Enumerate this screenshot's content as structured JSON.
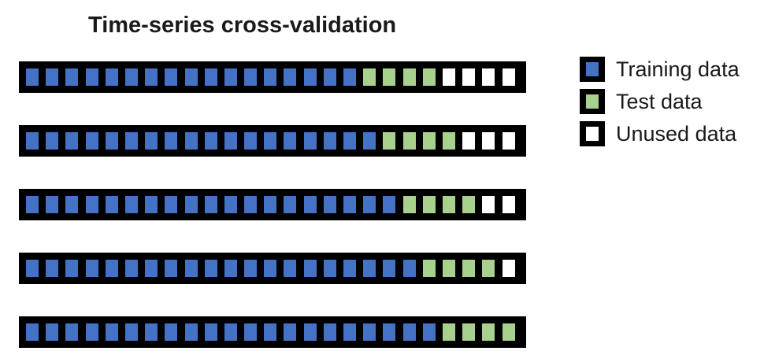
{
  "title": "Time-series cross-validation",
  "colors": {
    "training": "#4472C4",
    "test": "#A9D18E",
    "unused": "#FFFFFF",
    "border": "#000000"
  },
  "legend": [
    {
      "key": "training",
      "label": "Training data",
      "icon": "blue-square-icon"
    },
    {
      "key": "test",
      "label": "Test data",
      "icon": "green-square-icon"
    },
    {
      "key": "unused",
      "label": "Unused data",
      "icon": "white-square-icon"
    }
  ],
  "folds": [
    {
      "training": 17,
      "test": 4,
      "unused": 4
    },
    {
      "training": 18,
      "test": 4,
      "unused": 3
    },
    {
      "training": 19,
      "test": 4,
      "unused": 2
    },
    {
      "training": 20,
      "test": 4,
      "unused": 1
    },
    {
      "training": 21,
      "test": 4,
      "unused": 0
    }
  ]
}
